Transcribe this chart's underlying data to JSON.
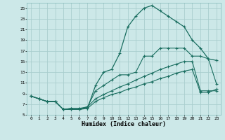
{
  "bg_color": "#cce8e8",
  "grid_color": "#aacece",
  "line_color": "#1a6e60",
  "xlabel": "Humidex (Indice chaleur)",
  "xlim": [
    -0.5,
    23.5
  ],
  "ylim": [
    5,
    26
  ],
  "yticks": [
    5,
    7,
    9,
    11,
    13,
    15,
    17,
    19,
    21,
    23,
    25
  ],
  "xticks": [
    0,
    1,
    2,
    3,
    4,
    5,
    6,
    7,
    8,
    9,
    10,
    11,
    12,
    13,
    14,
    15,
    16,
    17,
    18,
    19,
    20,
    21,
    22,
    23
  ],
  "line1_x": [
    0,
    1,
    2,
    3,
    4,
    5,
    6,
    7,
    8,
    9,
    10,
    11,
    12,
    13,
    14,
    15,
    16,
    17,
    18,
    19,
    20,
    21,
    22,
    23
  ],
  "line1_y": [
    8.5,
    8.0,
    7.5,
    7.5,
    6.0,
    6.2,
    6.2,
    6.2,
    10.5,
    13.0,
    13.5,
    16.5,
    21.5,
    23.5,
    25.0,
    25.5,
    24.5,
    23.5,
    22.5,
    21.5,
    19.0,
    17.5,
    15.5,
    15.2
  ],
  "line2_x": [
    0,
    1,
    2,
    3,
    4,
    5,
    6,
    7,
    8,
    9,
    10,
    11,
    12,
    13,
    14,
    15,
    16,
    17,
    18,
    19,
    20,
    21,
    22,
    23
  ],
  "line2_y": [
    8.5,
    8.0,
    7.5,
    7.5,
    6.0,
    6.2,
    6.2,
    6.5,
    9.5,
    10.5,
    11.5,
    12.5,
    12.5,
    13.0,
    16.0,
    16.0,
    17.5,
    17.5,
    17.5,
    17.5,
    16.0,
    16.0,
    15.5,
    10.8
  ],
  "line3_x": [
    0,
    1,
    2,
    3,
    4,
    5,
    6,
    7,
    8,
    9,
    10,
    11,
    12,
    13,
    14,
    15,
    16,
    17,
    18,
    19,
    20,
    21,
    22,
    23
  ],
  "line3_y": [
    8.5,
    8.0,
    7.5,
    7.5,
    6.0,
    6.0,
    6.0,
    6.5,
    8.0,
    8.8,
    9.5,
    10.2,
    10.8,
    11.5,
    12.2,
    12.8,
    13.5,
    14.0,
    14.5,
    15.0,
    15.0,
    9.5,
    9.5,
    9.5
  ],
  "line4_x": [
    0,
    1,
    2,
    3,
    4,
    5,
    6,
    7,
    8,
    9,
    10,
    11,
    12,
    13,
    14,
    15,
    16,
    17,
    18,
    19,
    20,
    21,
    22,
    23
  ],
  "line4_y": [
    8.5,
    8.0,
    7.5,
    7.5,
    6.0,
    6.0,
    6.0,
    6.2,
    7.5,
    8.2,
    8.8,
    9.2,
    9.8,
    10.2,
    10.8,
    11.2,
    11.8,
    12.2,
    12.8,
    13.2,
    13.5,
    9.2,
    9.2,
    9.8
  ]
}
